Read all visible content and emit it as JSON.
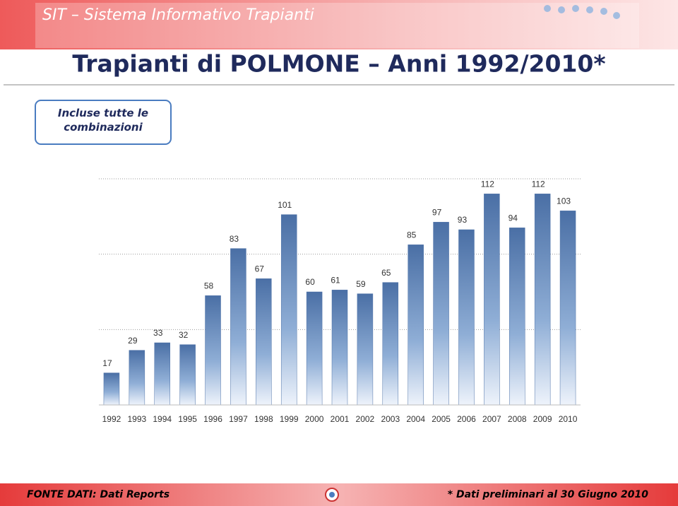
{
  "header": {
    "banner": "SIT – Sistema Informativo Trapianti",
    "title": "Trapianti di POLMONE – Anni 1992/2010*",
    "note": "Incluse tutte le combinazioni"
  },
  "footer": {
    "source": "FONTE DATI: Dati Reports",
    "note": "* Dati preliminari al 30 Giugno 2010"
  },
  "chart_data": {
    "type": "bar",
    "categories": [
      "1992",
      "1993",
      "1994",
      "1995",
      "1996",
      "1997",
      "1998",
      "1999",
      "2000",
      "2001",
      "2002",
      "2003",
      "2004",
      "2005",
      "2006",
      "2007",
      "2008",
      "2009",
      "2010"
    ],
    "values": [
      17,
      29,
      33,
      32,
      58,
      83,
      67,
      101,
      60,
      61,
      59,
      65,
      85,
      97,
      93,
      112,
      94,
      112,
      103
    ],
    "color": "#4f73a8",
    "ylim": [
      0,
      120
    ],
    "yticks": [
      0,
      40,
      80,
      120
    ],
    "grid": true
  }
}
